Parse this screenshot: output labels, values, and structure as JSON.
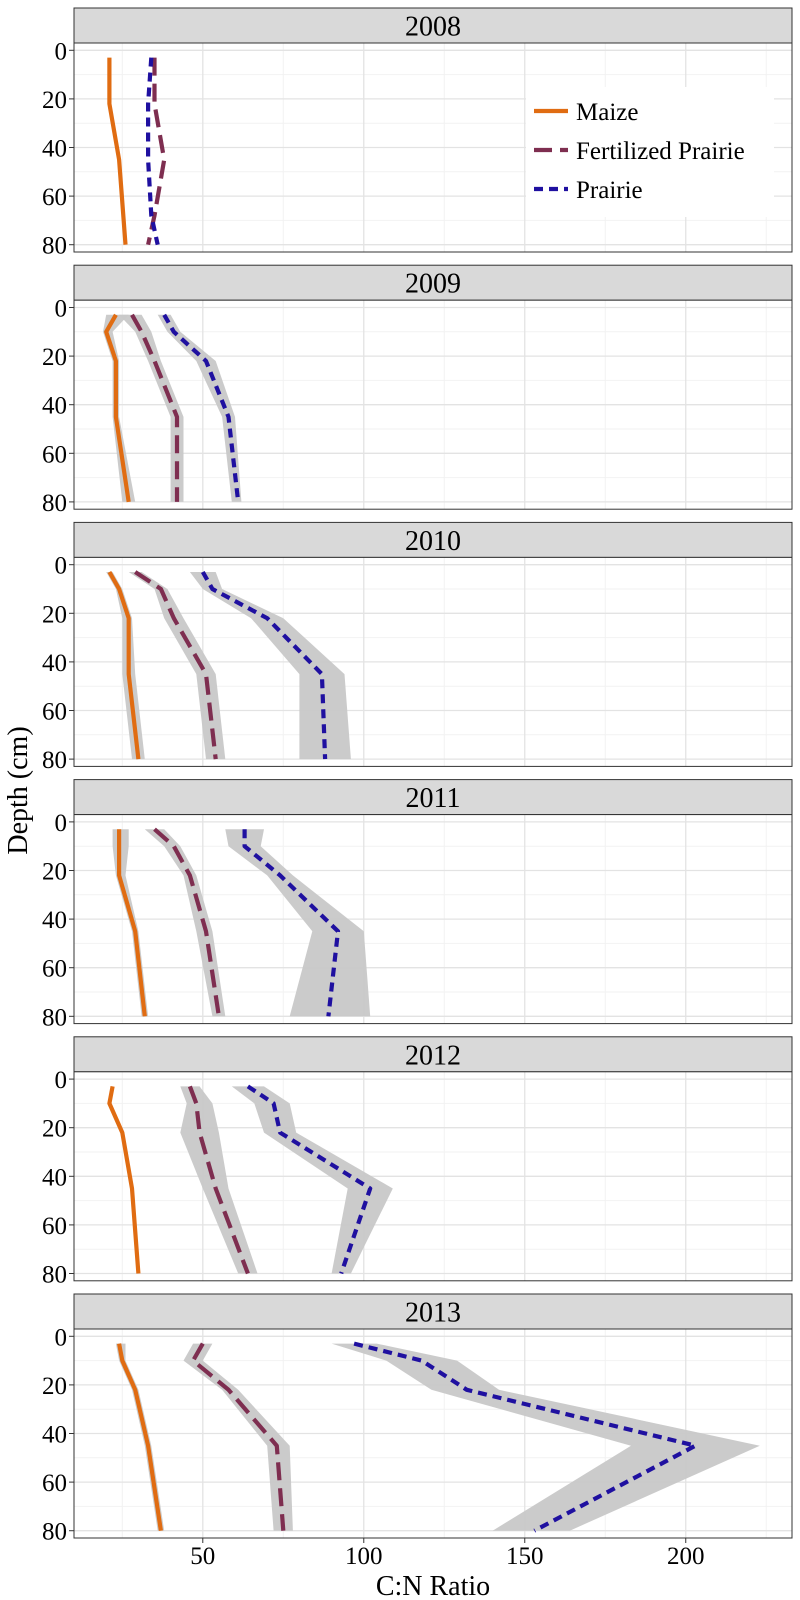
{
  "chart_data": {
    "type": "line",
    "layout": "faceted, one panel per year, stacked vertically",
    "xlabel": "C:N Ratio",
    "ylabel": "Depth (cm)",
    "xlim": [
      10,
      233
    ],
    "ylim": [
      -3,
      83
    ],
    "y_reversed": true,
    "x_ticks": [
      50,
      100,
      150,
      200
    ],
    "y_ticks": [
      0,
      20,
      40,
      60,
      80
    ],
    "grid": true,
    "ribbons": true,
    "legend_position": "top-right of first panel",
    "series_styles": [
      {
        "name": "Maize",
        "color": "#E06C12",
        "dash": "solid"
      },
      {
        "name": "Fertilized Prairie",
        "color": "#7E2E50",
        "dash": "long-dash"
      },
      {
        "name": "Prairie",
        "color": "#1F10A0",
        "dash": "short-dash"
      }
    ],
    "ribbon_color": "#c8c8c8",
    "panels": [
      {
        "strip": "2008",
        "series": [
          {
            "name": "Maize",
            "points": [
              [
                21,
                3
              ],
              [
                21,
                22
              ],
              [
                24,
                45
              ],
              [
                26,
                80
              ]
            ]
          },
          {
            "name": "Fertilized Prairie",
            "points": [
              [
                35,
                3
              ],
              [
                35,
                22
              ],
              [
                38,
                45
              ],
              [
                35,
                68
              ],
              [
                33,
                80
              ]
            ]
          },
          {
            "name": "Prairie",
            "points": [
              [
                34,
                3
              ],
              [
                33,
                22
              ],
              [
                33,
                45
              ],
              [
                34,
                68
              ],
              [
                36,
                80
              ]
            ]
          }
        ]
      },
      {
        "strip": "2009",
        "series": [
          {
            "name": "Maize",
            "points": [
              [
                23,
                3
              ],
              [
                20,
                10
              ],
              [
                23,
                22
              ],
              [
                23,
                45
              ],
              [
                27,
                80
              ]
            ],
            "lower": [
              20,
              19,
              22,
              22,
              25
            ],
            "upper": [
              27,
              22,
              24,
              24,
              29
            ]
          },
          {
            "name": "Fertilized Prairie",
            "points": [
              [
                28,
                3
              ],
              [
                31,
                10
              ],
              [
                35,
                22
              ],
              [
                42,
                45
              ],
              [
                42,
                80
              ]
            ],
            "lower": [
              24,
              29,
              33,
              40,
              40
            ],
            "upper": [
              31,
              34,
              37,
              44,
              44
            ]
          },
          {
            "name": "Prairie",
            "points": [
              [
                38,
                3
              ],
              [
                41,
                10
              ],
              [
                51,
                22
              ],
              [
                58,
                45
              ],
              [
                61,
                80
              ]
            ],
            "lower": [
              36,
              39,
              48,
              56,
              59
            ],
            "upper": [
              40,
              43,
              54,
              60,
              62
            ]
          }
        ]
      },
      {
        "strip": "2010",
        "series": [
          {
            "name": "Maize",
            "points": [
              [
                21,
                3
              ],
              [
                24,
                10
              ],
              [
                27,
                22
              ],
              [
                27,
                45
              ],
              [
                30,
                80
              ]
            ],
            "lower": [
              20,
              23,
              25,
              25,
              28
            ],
            "upper": [
              22,
              25,
              28,
              29,
              32
            ]
          },
          {
            "name": "Fertilized Prairie",
            "points": [
              [
                29,
                3
              ],
              [
                37,
                10
              ],
              [
                41,
                22
              ],
              [
                51,
                45
              ],
              [
                54,
                80
              ]
            ],
            "lower": [
              27,
              35,
              38,
              48,
              51
            ],
            "upper": [
              31,
              39,
              44,
              54,
              57
            ]
          },
          {
            "name": "Prairie",
            "points": [
              [
                50,
                3
              ],
              [
                53,
                10
              ],
              [
                70,
                22
              ],
              [
                87,
                45
              ],
              [
                88,
                80
              ]
            ],
            "lower": [
              46,
              50,
              65,
              80,
              80
            ],
            "upper": [
              54,
              56,
              75,
              94,
              96
            ]
          }
        ]
      },
      {
        "strip": "2011",
        "series": [
          {
            "name": "Maize",
            "points": [
              [
                24,
                3
              ],
              [
                24,
                10
              ],
              [
                24,
                22
              ],
              [
                29,
                45
              ],
              [
                32,
                80
              ]
            ],
            "lower": [
              22,
              22,
              23,
              28,
              31
            ],
            "upper": [
              27,
              27,
              26,
              30,
              33
            ]
          },
          {
            "name": "Fertilized Prairie",
            "points": [
              [
                35,
                3
              ],
              [
                41,
                10
              ],
              [
                46,
                22
              ],
              [
                51,
                45
              ],
              [
                55,
                80
              ]
            ],
            "lower": [
              32,
              38,
              44,
              48,
              53
            ],
            "upper": [
              38,
              43,
              48,
              53,
              57
            ]
          },
          {
            "name": "Prairie",
            "points": [
              [
                63,
                3
              ],
              [
                63,
                10
              ],
              [
                74,
                22
              ],
              [
                92,
                45
              ],
              [
                89,
                80
              ]
            ],
            "lower": [
              57,
              58,
              70,
              84,
              77
            ],
            "upper": [
              69,
              68,
              78,
              100,
              102
            ]
          }
        ]
      },
      {
        "strip": "2012",
        "series": [
          {
            "name": "Maize",
            "points": [
              [
                22,
                3
              ],
              [
                21,
                10
              ],
              [
                25,
                22
              ],
              [
                28,
                45
              ],
              [
                30,
                80
              ]
            ],
            "lower": [
              22,
              21,
              25,
              28,
              30
            ],
            "upper": [
              22,
              21,
              25,
              28,
              30
            ]
          },
          {
            "name": "Fertilized Prairie",
            "points": [
              [
                46,
                3
              ],
              [
                48,
                10
              ],
              [
                49,
                22
              ],
              [
                54,
                45
              ],
              [
                64,
                80
              ]
            ],
            "lower": [
              43,
              45,
              43,
              50,
              61
            ],
            "upper": [
              49,
              53,
              55,
              58,
              67
            ]
          },
          {
            "name": "Prairie",
            "points": [
              [
                64,
                3
              ],
              [
                72,
                10
              ],
              [
                74,
                22
              ],
              [
                102,
                45
              ],
              [
                93,
                80
              ]
            ],
            "lower": [
              59,
              66,
              69,
              95,
              90
            ],
            "upper": [
              69,
              77,
              79,
              109,
              96
            ]
          }
        ]
      },
      {
        "strip": "2013",
        "series": [
          {
            "name": "Maize",
            "points": [
              [
                24,
                3
              ],
              [
                25,
                10
              ],
              [
                29,
                22
              ],
              [
                33,
                45
              ],
              [
                37,
                80
              ]
            ],
            "lower": [
              23,
              24,
              28,
              32,
              36
            ],
            "upper": [
              26,
              26,
              30,
              34,
              38
            ]
          },
          {
            "name": "Fertilized Prairie",
            "points": [
              [
                50,
                3
              ],
              [
                47,
                10
              ],
              [
                58,
                22
              ],
              [
                73,
                45
              ],
              [
                75,
                80
              ]
            ],
            "lower": [
              47,
              44,
              56,
              70,
              72
            ],
            "upper": [
              53,
              50,
              61,
              77,
              78
            ]
          },
          {
            "name": "Prairie",
            "points": [
              [
                97,
                3
              ],
              [
                118,
                10
              ],
              [
                132,
                22
              ],
              [
                203,
                45
              ],
              [
                153,
                80
              ]
            ],
            "lower": [
              90,
              107,
              121,
              183,
              140
            ],
            "upper": [
              104,
              129,
              142,
              223,
              164
            ]
          }
        ]
      }
    ]
  }
}
